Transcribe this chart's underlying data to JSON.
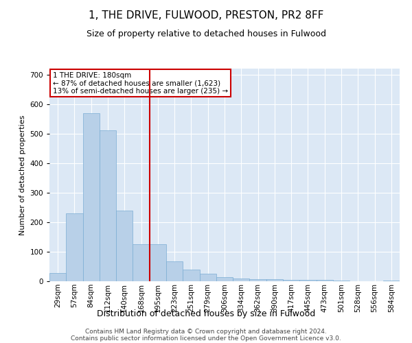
{
  "title": "1, THE DRIVE, FULWOOD, PRESTON, PR2 8FF",
  "subtitle": "Size of property relative to detached houses in Fulwood",
  "xlabel": "Distribution of detached houses by size in Fulwood",
  "ylabel": "Number of detached properties",
  "bar_color": "#b8d0e8",
  "bar_edge_color": "#7aadd4",
  "background_color": "#dce8f5",
  "marker_color": "#cc0000",
  "annotation_text": "1 THE DRIVE: 180sqm\n← 87% of detached houses are smaller (1,623)\n13% of semi-detached houses are larger (235) →",
  "categories": [
    "29sqm",
    "57sqm",
    "84sqm",
    "112sqm",
    "140sqm",
    "168sqm",
    "195sqm",
    "223sqm",
    "251sqm",
    "279sqm",
    "306sqm",
    "334sqm",
    "362sqm",
    "390sqm",
    "417sqm",
    "445sqm",
    "473sqm",
    "501sqm",
    "528sqm",
    "556sqm",
    "584sqm"
  ],
  "values": [
    27,
    230,
    570,
    510,
    240,
    125,
    125,
    68,
    40,
    25,
    15,
    10,
    8,
    8,
    5,
    5,
    4,
    3,
    1,
    0,
    2
  ],
  "ylim": [
    0,
    720
  ],
  "yticks": [
    0,
    100,
    200,
    300,
    400,
    500,
    600,
    700
  ],
  "footer_line1": "Contains HM Land Registry data © Crown copyright and database right 2024.",
  "footer_line2": "Contains public sector information licensed under the Open Government Licence v3.0.",
  "annotation_box_color": "#ffffff",
  "annotation_border_color": "#cc0000",
  "title_fontsize": 11,
  "subtitle_fontsize": 9,
  "ylabel_fontsize": 8,
  "xlabel_fontsize": 9,
  "tick_fontsize": 7.5,
  "annotation_fontsize": 7.5,
  "footer_fontsize": 6.5
}
